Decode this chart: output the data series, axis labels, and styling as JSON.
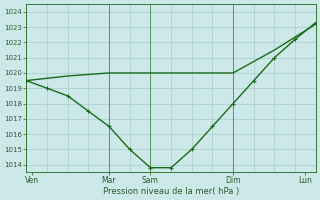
{
  "title": "",
  "xlabel": "Pression niveau de la mer( hPa )",
  "ylabel": "",
  "bg_color": "#cce8e8",
  "grid_color": "#aacccc",
  "line_color": "#1a6b1a",
  "tick_color": "#2d5a2d",
  "xlim": [
    0,
    28
  ],
  "ylim": [
    1013.5,
    1024.5
  ],
  "yticks": [
    1014,
    1015,
    1016,
    1017,
    1018,
    1019,
    1020,
    1021,
    1022,
    1023,
    1024
  ],
  "xtick_positions": [
    0.5,
    8,
    12,
    20,
    27
  ],
  "xtick_labels": [
    "Ven",
    "Mar",
    "Sam",
    "Dim",
    "Lun"
  ],
  "vline_positions": [
    8,
    12,
    20
  ],
  "line1_x": [
    0,
    4,
    8,
    12,
    16,
    20,
    24,
    28
  ],
  "line1_y": [
    1019.5,
    1019.8,
    1020.0,
    1020.0,
    1020.0,
    1020.0,
    1021.5,
    1023.2
  ],
  "line2_x": [
    0,
    2,
    4,
    6,
    8,
    10,
    12,
    14,
    16,
    18,
    20,
    22,
    24,
    26,
    28
  ],
  "line2_y": [
    1019.5,
    1019.0,
    1018.5,
    1017.5,
    1016.5,
    1015.0,
    1013.8,
    1013.8,
    1015.0,
    1016.5,
    1018.0,
    1019.5,
    1021.0,
    1022.2,
    1023.3
  ],
  "marker_size": 2.5,
  "line_width": 1.0
}
